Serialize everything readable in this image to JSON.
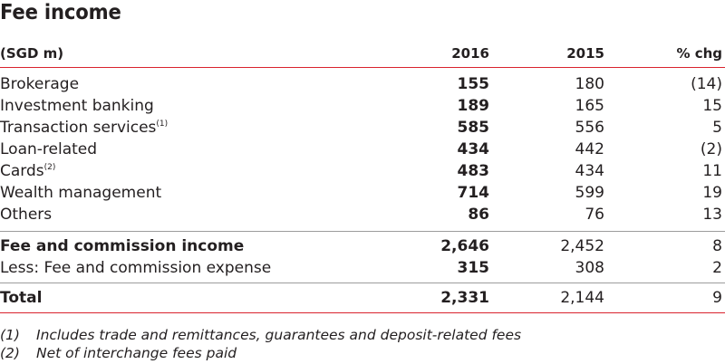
{
  "title": "Fee income",
  "header": {
    "label": "(SGD m)",
    "col_2016": "2016",
    "col_2015": "2015",
    "col_chg": "% chg"
  },
  "rows": [
    {
      "label": "Brokerage",
      "sup": "",
      "v2016": "155",
      "v2015": "180",
      "chg": "(14)"
    },
    {
      "label": "Investment banking",
      "sup": "",
      "v2016": "189",
      "v2015": "165",
      "chg": "15"
    },
    {
      "label": "Transaction services",
      "sup": "(1)",
      "v2016": "585",
      "v2015": "556",
      "chg": "5"
    },
    {
      "label": "Loan-related",
      "sup": "",
      "v2016": "434",
      "v2015": "442",
      "chg": "(2)"
    },
    {
      "label": "Cards",
      "sup": "(2)",
      "v2016": "483",
      "v2015": "434",
      "chg": "11"
    },
    {
      "label": "Wealth management",
      "sup": "",
      "v2016": "714",
      "v2015": "599",
      "chg": "19"
    },
    {
      "label": "Others",
      "sup": "",
      "v2016": "86",
      "v2015": "76",
      "chg": "13"
    }
  ],
  "subtotal": {
    "label": "Fee and commission income",
    "v2016": "2,646",
    "v2015": "2,452",
    "chg": "8"
  },
  "expense": {
    "label": "Less: Fee and commission expense",
    "v2016": "315",
    "v2015": "308",
    "chg": "2"
  },
  "total": {
    "label": "Total",
    "v2016": "2,331",
    "v2015": "2,144",
    "chg": "9"
  },
  "footnotes": [
    {
      "num": "(1)",
      "text": "Includes trade and remittances, guarantees and deposit-related fees"
    },
    {
      "num": "(2)",
      "text": "Net of interchange fees paid"
    }
  ],
  "colors": {
    "rule_red": "#d9232e",
    "rule_grey": "#9c9c9c",
    "text": "#231f20"
  }
}
